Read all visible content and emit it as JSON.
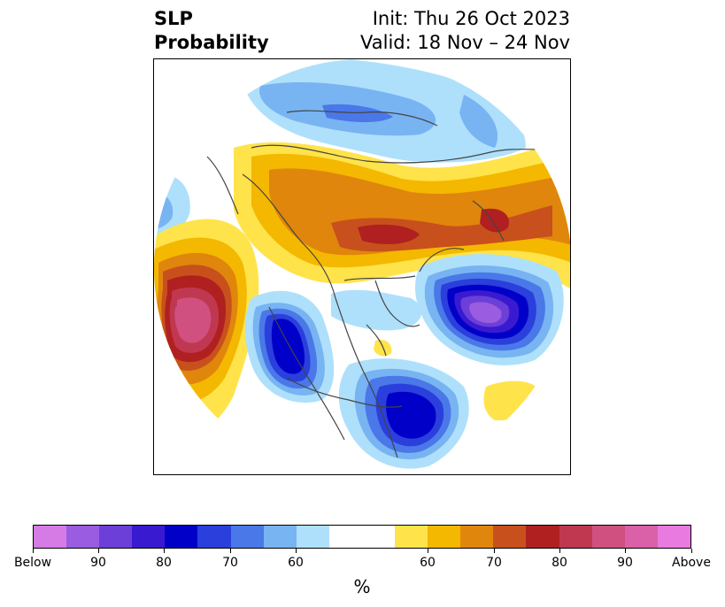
{
  "header": {
    "left_line1": "SLP",
    "left_line2": "Probability",
    "right_line1": "Init: Thu 26 Oct 2023",
    "right_line2": "Valid: 18 Nov – 24 Nov"
  },
  "colors": {
    "below_95": "#d67be6",
    "below_90": "#9a5ce0",
    "below_85": "#6c3fd8",
    "below_80": "#3a1ad0",
    "below_75": "#0000c8",
    "below_70": "#2a3fdc",
    "below_65": "#4a78e8",
    "below_60": "#78b4f2",
    "below_55": "#aee0fb",
    "neutral": "#ffffff",
    "above_55": "#ffe34a",
    "above_60": "#f4b800",
    "above_65": "#e0860c",
    "above_70": "#c8501c",
    "above_75": "#b02020",
    "above_80": "#c03850",
    "above_85": "#d05080",
    "above_90": "#da60a8",
    "above_95": "#e87ae0",
    "land_outline": "#444444"
  },
  "colorbar": {
    "segments": [
      "#d67be6",
      "#9a5ce0",
      "#6c3fd8",
      "#3a1ad0",
      "#0000c8",
      "#2a3fdc",
      "#4a78e8",
      "#78b4f2",
      "#aee0fb",
      "#ffffff",
      "#ffffff",
      "#ffe34a",
      "#f4b800",
      "#e0860c",
      "#c8501c",
      "#b02020",
      "#c03850",
      "#d05080",
      "#da60a8",
      "#e87ae0"
    ],
    "ticks": [
      "Below",
      "90",
      "80",
      "70",
      "60",
      "60",
      "70",
      "80",
      "90",
      "Above"
    ],
    "label": "%"
  }
}
